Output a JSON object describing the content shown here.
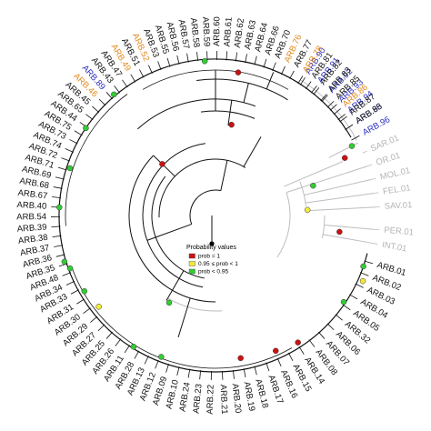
{
  "colors": {
    "black": "#111111",
    "orange": "#e08a1e",
    "blue": "#2a2fc0",
    "gray": "#b4b4b4",
    "prob_eq_1": "#cc1111",
    "prob_mid": "#f2ea3a",
    "prob_low": "#33cc33"
  },
  "legend": {
    "title": "Probability values",
    "items": [
      {
        "label": "prob = 1",
        "color_key": "prob_eq_1"
      },
      {
        "label": "0.95 ≤ prob < 1",
        "color_key": "prob_mid"
      },
      {
        "label": "prob < 0.95",
        "color_key": "prob_low"
      }
    ]
  },
  "tips": [
    {
      "label": "ARB.90",
      "color": "blue",
      "angle": -57.0
    },
    {
      "label": "ARB.91",
      "color": "blue",
      "angle": -52.0
    },
    {
      "label": "ARB.92",
      "color": "blue",
      "angle": -47.0
    },
    {
      "label": "ARB.93",
      "color": "blue",
      "angle": -42.5
    },
    {
      "label": "ARB.94",
      "color": "blue",
      "angle": -38.0
    },
    {
      "label": "ARB.95",
      "color": "blue",
      "angle": -33.5
    },
    {
      "label": "ARB.96",
      "color": "blue",
      "angle": -29.0
    },
    {
      "label": "SAR.01",
      "color": "gray",
      "angle": -23.0
    },
    {
      "label": "OR.01",
      "color": "gray",
      "angle": -18.0
    },
    {
      "label": "MOL.01",
      "color": "gray",
      "angle": -13.0
    },
    {
      "label": "FEL.01",
      "color": "gray",
      "angle": -8.0
    },
    {
      "label": "SAV.01",
      "color": "gray",
      "angle": -3.0
    },
    {
      "label": "PER.01",
      "color": "gray",
      "angle": 5.0
    },
    {
      "label": "INT.01",
      "color": "gray",
      "angle": 10.0
    },
    {
      "label": "ARB.01",
      "color": "black",
      "angle": 17.0
    },
    {
      "label": "ARB.02",
      "color": "black",
      "angle": 21.5
    },
    {
      "label": "ARB.03",
      "color": "black",
      "angle": 26.0
    },
    {
      "label": "ARB.04",
      "color": "black",
      "angle": 30.5
    },
    {
      "label": "ARB.05",
      "color": "black",
      "angle": 35.0
    },
    {
      "label": "ARB.32",
      "color": "black",
      "angle": 39.5
    },
    {
      "label": "ARB.06",
      "color": "black",
      "angle": 44.0
    },
    {
      "label": "ARB.07",
      "color": "black",
      "angle": 48.5
    },
    {
      "label": "ARB.08",
      "color": "black",
      "angle": 53.0
    },
    {
      "label": "ARB.14",
      "color": "black",
      "angle": 57.5
    },
    {
      "label": "ARB.15",
      "color": "black",
      "angle": 62.0
    },
    {
      "label": "ARB.16",
      "color": "black",
      "angle": 66.5
    },
    {
      "label": "ARB.17",
      "color": "black",
      "angle": 71.0
    },
    {
      "label": "ARB.18",
      "color": "black",
      "angle": 75.5
    },
    {
      "label": "ARB.19",
      "color": "black",
      "angle": 79.5
    },
    {
      "label": "ARB.20",
      "color": "black",
      "angle": 83.5
    },
    {
      "label": "ARB.21",
      "color": "black",
      "angle": 87.5
    },
    {
      "label": "ARB.22",
      "color": "black",
      "angle": 91.5
    },
    {
      "label": "ARB.23",
      "color": "black",
      "angle": 95.5
    },
    {
      "label": "ARB.24",
      "color": "black",
      "angle": 99.5
    },
    {
      "label": "ARB.10",
      "color": "black",
      "angle": 103.5
    },
    {
      "label": "ARB.09",
      "color": "black",
      "angle": 107.5
    },
    {
      "label": "ARB.12",
      "color": "black",
      "angle": 111.5
    },
    {
      "label": "ARB.13",
      "color": "black",
      "angle": 115.5
    },
    {
      "label": "ARB.28",
      "color": "black",
      "angle": 119.5
    },
    {
      "label": "ARB.11",
      "color": "black",
      "angle": 123.5
    },
    {
      "label": "ARB.26",
      "color": "black",
      "angle": 127.5
    },
    {
      "label": "ARB.25",
      "color": "black",
      "angle": 131.5
    },
    {
      "label": "ARB.27",
      "color": "black",
      "angle": 135.5
    },
    {
      "label": "ARB.29",
      "color": "black",
      "angle": 139.5
    },
    {
      "label": "ARB.30",
      "color": "black",
      "angle": 143.5
    },
    {
      "label": "ARB.31",
      "color": "black",
      "angle": 147.5
    },
    {
      "label": "ARB.33",
      "color": "black",
      "angle": 151.5
    },
    {
      "label": "ARB.34",
      "color": "black",
      "angle": 155.0
    },
    {
      "label": "ARB.48",
      "color": "black",
      "angle": 158.5
    },
    {
      "label": "ARB.35",
      "color": "black",
      "angle": 162.0
    },
    {
      "label": "ARB.36",
      "color": "black",
      "angle": 165.5
    },
    {
      "label": "ARB.37",
      "color": "black",
      "angle": 169.0
    },
    {
      "label": "ARB.38",
      "color": "black",
      "angle": 172.5
    },
    {
      "label": "ARB.39",
      "color": "black",
      "angle": 176.0
    },
    {
      "label": "ARB.54",
      "color": "black",
      "angle": 179.5
    },
    {
      "label": "ARB.40",
      "color": "black",
      "angle": 183.0
    },
    {
      "label": "ARB.67",
      "color": "black",
      "angle": 186.5
    },
    {
      "label": "ARB.68",
      "color": "black",
      "angle": 190.0
    },
    {
      "label": "ARB.69",
      "color": "black",
      "angle": 193.5
    },
    {
      "label": "ARB.71",
      "color": "black",
      "angle": 197.0
    },
    {
      "label": "ARB.72",
      "color": "black",
      "angle": 200.5
    },
    {
      "label": "ARB.74",
      "color": "black",
      "angle": 204.0
    },
    {
      "label": "ARB.73",
      "color": "black",
      "angle": 207.5
    },
    {
      "label": "ARB.75",
      "color": "black",
      "angle": 211.0
    },
    {
      "label": "ARB.44",
      "color": "black",
      "angle": 214.5
    },
    {
      "label": "ARB.65",
      "color": "black",
      "angle": 218.0
    },
    {
      "label": "ARB.45",
      "color": "black",
      "angle": 221.5
    },
    {
      "label": "ARB.46",
      "color": "orange",
      "angle": 225.0
    },
    {
      "label": "ARB.89",
      "color": "blue",
      "angle": 228.5
    },
    {
      "label": "ARB.43",
      "color": "black",
      "angle": 232.0
    },
    {
      "label": "ARB.47",
      "color": "black",
      "angle": 235.5
    },
    {
      "label": "ARB.49",
      "color": "orange",
      "angle": 239.0
    },
    {
      "label": "ARB.51",
      "color": "black",
      "angle": 242.5
    },
    {
      "label": "ARB.52",
      "color": "orange",
      "angle": 246.0
    },
    {
      "label": "ARB.53",
      "color": "black",
      "angle": 249.5
    },
    {
      "label": "ARB.55",
      "color": "black",
      "angle": 253.0
    },
    {
      "label": "ARB.56",
      "color": "black",
      "angle": 256.5
    },
    {
      "label": "ARB.57",
      "color": "black",
      "angle": 260.0
    },
    {
      "label": "ARB.58",
      "color": "black",
      "angle": 263.5
    },
    {
      "label": "ARB.59",
      "color": "black",
      "angle": 267.0
    },
    {
      "label": "ARB.60",
      "color": "black",
      "angle": 270.5
    },
    {
      "label": "ARB.61",
      "color": "black",
      "angle": 274.0
    },
    {
      "label": "ARB.62",
      "color": "black",
      "angle": 277.5
    },
    {
      "label": "ARB.63",
      "color": "black",
      "angle": 281.0
    },
    {
      "label": "ARB.64",
      "color": "black",
      "angle": 284.5
    },
    {
      "label": "ARB.66",
      "color": "black",
      "angle": 288.0
    },
    {
      "label": "ARB.70",
      "color": "black",
      "angle": 291.5
    },
    {
      "label": "ARB.76",
      "color": "orange",
      "angle": 295.0
    },
    {
      "label": "ARB.77",
      "color": "black",
      "angle": 298.5
    },
    {
      "label": "ARB.78",
      "color": "orange",
      "angle": 302.0
    },
    {
      "label": "ARB.81",
      "color": "black",
      "angle": 305.5
    },
    {
      "label": "ARB.82",
      "color": "black",
      "angle": 309.0
    },
    {
      "label": "ARB.83",
      "color": "black",
      "angle": 312.5
    },
    {
      "label": "ARB.85",
      "color": "black",
      "angle": 316.0
    },
    {
      "label": "ARB.86",
      "color": "orange",
      "angle": 319.5
    },
    {
      "label": "ARB.87",
      "color": "black",
      "angle": 323.0
    },
    {
      "label": "ARB.88",
      "color": "black",
      "angle": 326.5
    }
  ],
  "nodes": [
    {
      "prob": "prob_eq_1",
      "angle": -24.0,
      "depth": 0.86
    },
    {
      "prob": "prob_low",
      "angle": -17.0,
      "depth": 0.62
    },
    {
      "prob": "prob_mid",
      "angle": -3.5,
      "depth": 0.56
    },
    {
      "prob": "prob_eq_1",
      "angle": 7.5,
      "depth": 0.76
    },
    {
      "prob": "prob_low",
      "angle": 19.0,
      "depth": 0.95
    },
    {
      "prob": "prob_mid",
      "angle": 24.0,
      "depth": 0.98
    },
    {
      "prob": "prob_low",
      "angle": 34.0,
      "depth": 0.94
    },
    {
      "prob": "prob_eq_1",
      "angle": 57.0,
      "depth": 0.92
    },
    {
      "prob": "prob_eq_1",
      "angle": 66.0,
      "depth": 0.9
    },
    {
      "prob": "prob_eq_1",
      "angle": 80.0,
      "depth": 0.88
    },
    {
      "prob": "prob_low",
      "angle": 111.0,
      "depth": 0.92
    },
    {
      "prob": "prob_low",
      "angle": 122.0,
      "depth": 0.94
    },
    {
      "prob": "prob_mid",
      "angle": 142.0,
      "depth": 0.9
    },
    {
      "prob": "prob_low",
      "angle": 150.0,
      "depth": 0.92
    },
    {
      "prob": "prob_low",
      "angle": 160.0,
      "depth": 0.94
    },
    {
      "prob": "prob_low",
      "angle": 163.0,
      "depth": 0.96
    },
    {
      "prob": "prob_low",
      "angle": 183.0,
      "depth": 0.95
    },
    {
      "prob": "prob_low",
      "angle": 198.0,
      "depth": 0.93
    },
    {
      "prob": "prob_low",
      "angle": 214.0,
      "depth": 0.95
    },
    {
      "prob": "prob_low",
      "angle": 230.0,
      "depth": 0.96
    },
    {
      "prob": "prob_low",
      "angle": 266.0,
      "depth": 0.94
    },
    {
      "prob": "prob_eq_1",
      "angle": 279.0,
      "depth": 0.88
    },
    {
      "prob": "prob_eq_1",
      "angle": 224.0,
      "depth": 0.45
    },
    {
      "prob": "prob_eq_1",
      "angle": 280.0,
      "depth": 0.56
    },
    {
      "prob": "prob_low",
      "angle": 118.0,
      "depth": 0.6
    },
    {
      "prob": "prob_low",
      "angle": -27.0,
      "depth": 0.93
    }
  ]
}
